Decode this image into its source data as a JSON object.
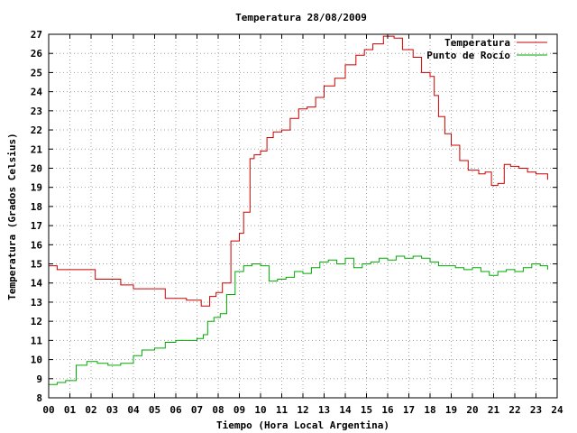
{
  "chart_data": {
    "type": "line",
    "title": "Temperatura 28/08/2009",
    "xlabel": "Tiempo (Hora Local Argentina)",
    "ylabel": "Temperatura (Grados Celsius)",
    "xlim": [
      0,
      24
    ],
    "ylim": [
      8,
      27
    ],
    "grid": true,
    "legend_position": "top-right",
    "x_ticks": [
      "00",
      "01",
      "02",
      "03",
      "04",
      "05",
      "06",
      "07",
      "08",
      "09",
      "10",
      "11",
      "12",
      "13",
      "14",
      "15",
      "16",
      "17",
      "18",
      "19",
      "20",
      "21",
      "22",
      "23",
      "24"
    ],
    "y_ticks": [
      "8",
      "9",
      "10",
      "11",
      "12",
      "13",
      "14",
      "15",
      "16",
      "17",
      "18",
      "19",
      "20",
      "21",
      "22",
      "23",
      "24",
      "25",
      "26",
      "27"
    ],
    "series": [
      {
        "name": "Temperatura",
        "color": "#cc0000",
        "x": [
          0,
          0.4,
          1.5,
          2.2,
          3.4,
          4.0,
          5.5,
          6.5,
          7.2,
          7.6,
          7.9,
          8.2,
          8.6,
          9.0,
          9.2,
          9.5,
          9.7,
          10.0,
          10.3,
          10.6,
          11.0,
          11.4,
          11.8,
          12.2,
          12.6,
          13.0,
          13.5,
          14.0,
          14.5,
          14.9,
          15.3,
          15.8,
          16.3,
          16.7,
          17.2,
          17.6,
          18.0,
          18.2,
          18.4,
          18.7,
          19.0,
          19.4,
          19.8,
          20.3,
          20.6,
          20.9,
          21.2,
          21.5,
          21.8,
          22.2,
          22.6,
          23.0,
          23.3,
          23.55
        ],
        "values": [
          14.9,
          14.7,
          14.7,
          14.2,
          13.9,
          13.7,
          13.2,
          13.1,
          12.8,
          13.3,
          13.5,
          14.0,
          16.2,
          16.6,
          17.7,
          20.5,
          20.7,
          20.9,
          21.6,
          21.9,
          22.0,
          22.6,
          23.1,
          23.2,
          23.7,
          24.3,
          24.7,
          25.4,
          25.9,
          26.2,
          26.5,
          26.9,
          26.8,
          26.2,
          25.8,
          25.0,
          24.8,
          23.8,
          22.7,
          21.8,
          21.2,
          20.4,
          19.9,
          19.7,
          19.8,
          19.1,
          19.2,
          20.2,
          20.1,
          20.0,
          19.8,
          19.7,
          19.7,
          19.4
        ]
      },
      {
        "name": "Punto de Rocío",
        "color": "#00aa00",
        "x": [
          0,
          0.4,
          0.8,
          1.3,
          1.8,
          2.3,
          2.8,
          3.4,
          4.0,
          4.4,
          5.0,
          5.5,
          6.0,
          6.5,
          7.0,
          7.3,
          7.5,
          7.8,
          8.1,
          8.4,
          8.8,
          9.2,
          9.6,
          10.0,
          10.4,
          10.8,
          11.2,
          11.6,
          12.0,
          12.4,
          12.8,
          13.2,
          13.6,
          14.0,
          14.4,
          14.8,
          15.2,
          15.6,
          16.0,
          16.4,
          16.8,
          17.2,
          17.6,
          18.0,
          18.4,
          18.8,
          19.2,
          19.6,
          20.0,
          20.4,
          20.8,
          21.2,
          21.6,
          22.0,
          22.4,
          22.8,
          23.2,
          23.55
        ],
        "values": [
          8.7,
          8.8,
          8.9,
          9.7,
          9.9,
          9.8,
          9.7,
          9.8,
          10.2,
          10.5,
          10.6,
          10.9,
          11.0,
          11.0,
          11.1,
          11.3,
          12.0,
          12.2,
          12.4,
          13.4,
          14.6,
          14.9,
          15.0,
          14.9,
          14.1,
          14.2,
          14.3,
          14.6,
          14.5,
          14.8,
          15.1,
          15.2,
          15.0,
          15.3,
          14.8,
          15.0,
          15.1,
          15.3,
          15.2,
          15.4,
          15.3,
          15.4,
          15.3,
          15.1,
          14.9,
          14.9,
          14.8,
          14.7,
          14.8,
          14.6,
          14.4,
          14.6,
          14.7,
          14.6,
          14.8,
          15.0,
          14.9,
          14.7
        ]
      }
    ]
  }
}
